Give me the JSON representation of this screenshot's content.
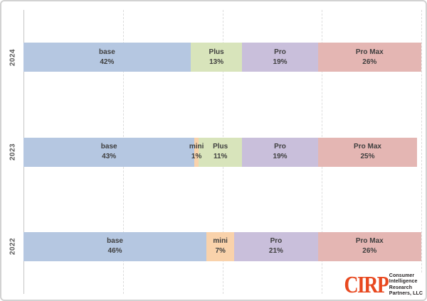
{
  "chart_data": {
    "type": "bar",
    "stacked": true,
    "orientation": "horizontal",
    "title": "",
    "categories": [
      "2024",
      "2023",
      "2022"
    ],
    "series": [
      {
        "name": "base",
        "color": "#b5c7e1",
        "values": [
          42,
          43,
          46
        ]
      },
      {
        "name": "mini",
        "color": "#f9d2ab",
        "values": [
          0,
          1,
          7
        ]
      },
      {
        "name": "Plus",
        "color": "#d8e4bb",
        "values": [
          13,
          11,
          0
        ]
      },
      {
        "name": "Pro",
        "color": "#c9bfdb",
        "values": [
          19,
          19,
          21
        ]
      },
      {
        "name": "Pro Max",
        "color": "#e4b6b3",
        "values": [
          26,
          25,
          26
        ]
      }
    ],
    "xlim": [
      0,
      100
    ],
    "gridlines_pct": [
      25,
      50,
      75,
      100
    ],
    "value_suffix": "%",
    "legend": "none",
    "labels_in_segments": true,
    "grid": "dashed-vertical"
  },
  "logo": {
    "abbr": "CIRP",
    "company_lines": [
      "Consumer",
      "Intelligence",
      "Research",
      "Partners, LLC"
    ],
    "accent_color": "#e8481f"
  },
  "styles": {
    "label_color": "#3f3f3f",
    "category_label_color": "#595959",
    "axis_line_color": "#c6c6c6",
    "gridline_color": "#dcdcdc",
    "background": "#ffffff"
  }
}
